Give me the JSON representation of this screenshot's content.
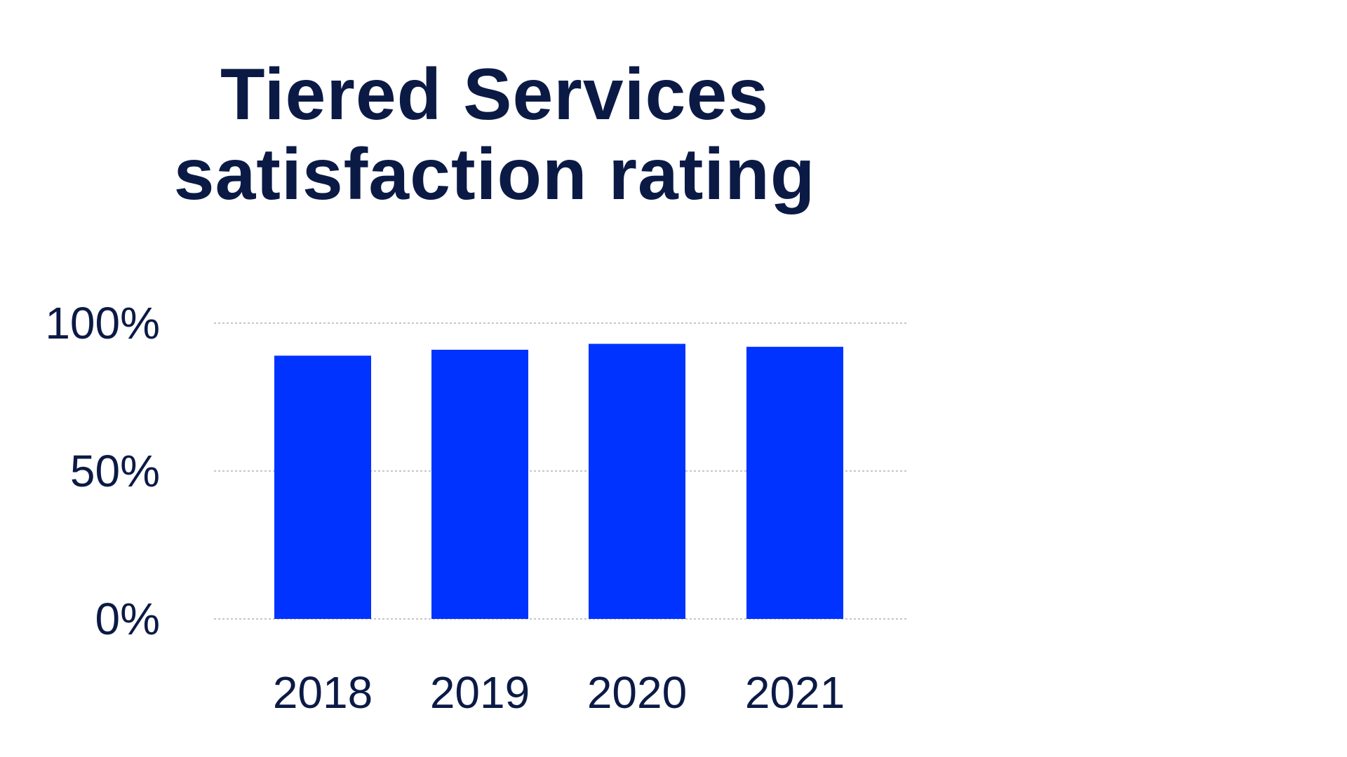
{
  "theme": {
    "text_color": "#0b1a45",
    "bar_color": "#0033ff",
    "grid_color": "#b4b4b4"
  },
  "chart_data": {
    "type": "bar",
    "title_lines": [
      "Tiered Services",
      "satisfaction rating"
    ],
    "categories": [
      "2018",
      "2019",
      "2020",
      "2021"
    ],
    "values": [
      89,
      91,
      93,
      92
    ],
    "ylim": [
      0,
      100
    ],
    "yticks": [
      0,
      50,
      100
    ],
    "ytick_labels": [
      "0%",
      "50%",
      "100%"
    ],
    "grid": true,
    "legend": "none",
    "xlabel": "",
    "ylabel": ""
  }
}
